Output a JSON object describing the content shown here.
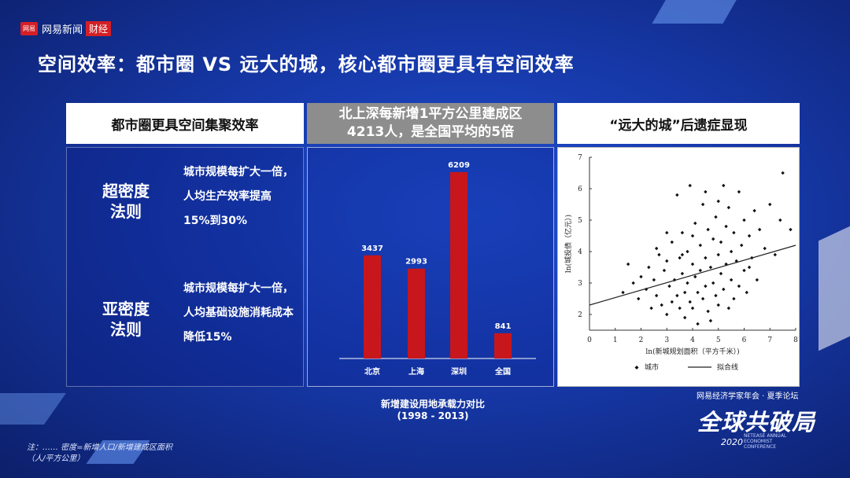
{
  "brand": {
    "badge": "网易",
    "name": "网易新闻",
    "section": "财经"
  },
  "title": "空间效率：都市圈 VS 远大的城，核心都市圈更具有空间效率",
  "left_panel": {
    "header": "都市圈更具空间集聚效率",
    "laws": [
      {
        "name": "超密度\n法则",
        "desc": "城市规模每扩大一倍，人均生产效率提高15%到30%"
      },
      {
        "name": "亚密度\n法则",
        "desc": "城市规模每扩大一倍，人均基础设施消耗成本降低15%"
      }
    ]
  },
  "middle_panel": {
    "header": "北上深每新增1平方公里建成区4213人，是全国平均的5倍",
    "caption_line1": "新增建设用地承载力对比",
    "caption_line2": "(1998 - 2013)"
  },
  "right_panel": {
    "header": "“远大的城”后遗症显现",
    "ylabel": "ln(城投债（亿元）)",
    "xlabel": "ln(新城规划面积（平方千米）)",
    "legend_points": "城市",
    "legend_line": "拟合线"
  },
  "chart_data": [
    {
      "type": "bar",
      "categories": [
        "北京",
        "上海",
        "深圳",
        "全国"
      ],
      "values": [
        3437,
        2993,
        6209,
        841
      ],
      "ylim": [
        0,
        6600
      ],
      "color": "#c8161d"
    },
    {
      "type": "scatter",
      "xlabel": "ln(新城规划面积（平方千米）)",
      "ylabel": "ln(城投债（亿元）)",
      "xlim": [
        0,
        8
      ],
      "ylim": [
        1.5,
        7
      ],
      "xticks": [
        0,
        1,
        2,
        3,
        4,
        5,
        6,
        7,
        8
      ],
      "yticks": [
        2,
        3,
        4,
        5,
        6,
        7
      ],
      "fit_line": [
        [
          0,
          2.3
        ],
        [
          8,
          4.2
        ]
      ],
      "series": [
        {
          "name": "城市",
          "points": [
            [
              1.3,
              2.7
            ],
            [
              1.5,
              3.6
            ],
            [
              1.7,
              3.0
            ],
            [
              1.9,
              2.5
            ],
            [
              2.0,
              3.2
            ],
            [
              2.2,
              2.8
            ],
            [
              2.3,
              3.5
            ],
            [
              2.4,
              2.2
            ],
            [
              2.5,
              3.1
            ],
            [
              2.6,
              2.6
            ],
            [
              2.7,
              3.9
            ],
            [
              2.8,
              2.3
            ],
            [
              2.9,
              3.4
            ],
            [
              3.0,
              2.0
            ],
            [
              3.0,
              3.7
            ],
            [
              3.1,
              2.9
            ],
            [
              3.2,
              4.3
            ],
            [
              3.2,
              2.4
            ],
            [
              3.3,
              3.1
            ],
            [
              3.4,
              5.8
            ],
            [
              3.4,
              2.6
            ],
            [
              3.5,
              3.8
            ],
            [
              3.5,
              2.2
            ],
            [
              3.6,
              4.6
            ],
            [
              3.6,
              3.3
            ],
            [
              3.7,
              2.7
            ],
            [
              3.7,
              1.9
            ],
            [
              3.8,
              4.0
            ],
            [
              3.8,
              3.0
            ],
            [
              3.9,
              2.4
            ],
            [
              3.9,
              6.1
            ],
            [
              4.0,
              3.6
            ],
            [
              4.0,
              2.2
            ],
            [
              4.1,
              4.9
            ],
            [
              4.1,
              3.2
            ],
            [
              4.2,
              2.7
            ],
            [
              4.2,
              1.7
            ],
            [
              4.3,
              4.2
            ],
            [
              4.3,
              3.4
            ],
            [
              4.4,
              2.5
            ],
            [
              4.4,
              5.5
            ],
            [
              4.5,
              3.8
            ],
            [
              4.5,
              2.9
            ],
            [
              4.6,
              4.7
            ],
            [
              4.6,
              2.1
            ],
            [
              4.7,
              3.5
            ],
            [
              4.7,
              1.8
            ],
            [
              4.8,
              4.4
            ],
            [
              4.8,
              3.0
            ],
            [
              4.9,
              2.6
            ],
            [
              4.9,
              5.1
            ],
            [
              5.0,
              3.9
            ],
            [
              5.0,
              2.3
            ],
            [
              5.1,
              4.3
            ],
            [
              5.1,
              3.3
            ],
            [
              5.2,
              6.1
            ],
            [
              5.2,
              2.8
            ],
            [
              5.3,
              4.8
            ],
            [
              5.3,
              3.6
            ],
            [
              5.4,
              2.2
            ],
            [
              5.4,
              5.4
            ],
            [
              5.5,
              4.0
            ],
            [
              5.5,
              3.1
            ],
            [
              5.6,
              4.6
            ],
            [
              5.6,
              2.5
            ],
            [
              5.7,
              3.7
            ],
            [
              5.8,
              5.9
            ],
            [
              5.8,
              2.9
            ],
            [
              5.9,
              4.2
            ],
            [
              6.0,
              3.4
            ],
            [
              6.0,
              5.0
            ],
            [
              6.1,
              2.7
            ],
            [
              6.2,
              4.5
            ],
            [
              6.3,
              3.8
            ],
            [
              6.4,
              5.3
            ],
            [
              6.5,
              3.1
            ],
            [
              6.6,
              4.7
            ],
            [
              6.8,
              4.1
            ],
            [
              7.0,
              5.5
            ],
            [
              7.2,
              3.9
            ],
            [
              7.4,
              5.0
            ],
            [
              7.5,
              6.5
            ],
            [
              7.8,
              4.7
            ],
            [
              3.0,
              4.6
            ],
            [
              2.6,
              4.1
            ],
            [
              4.5,
              5.9
            ],
            [
              5.0,
              5.6
            ],
            [
              6.2,
              3.5
            ],
            [
              3.6,
              3.9
            ],
            [
              4.0,
              4.5
            ]
          ]
        }
      ]
    }
  ],
  "note": {
    "line1": "注：…… 密度=新增人口/新增建成区面积",
    "line2": "（人/平方公里）"
  },
  "conference": {
    "line1": "网易经济学家年会 · 夏季论坛",
    "big": "全球共破局",
    "year": "2020",
    "sub": "NETEASE ANNUAL ECONOMIST CONFERENCE"
  }
}
